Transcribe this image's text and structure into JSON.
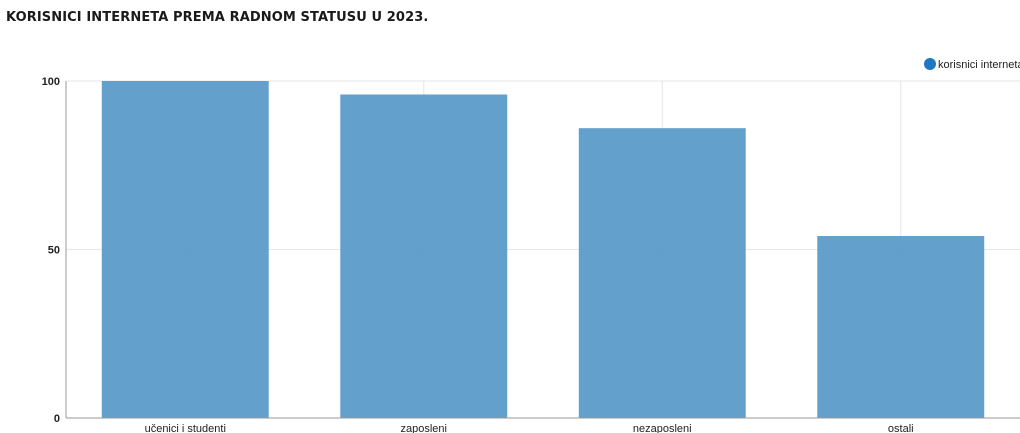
{
  "chart_data": {
    "type": "bar",
    "title": "KORISNICI INTERNETA PREMA RADNOM STATUSU U 2023.",
    "categories": [
      "učenici i studenti",
      "zaposleni",
      "nezaposleni",
      "ostali"
    ],
    "series": [
      {
        "name": "korisnici interneta",
        "values": [
          100,
          96,
          86,
          54
        ],
        "color": "#5b9bc8"
      }
    ],
    "y_ticks": [
      "0",
      "50",
      "100"
    ],
    "ylim": [
      0,
      100
    ],
    "grid": true,
    "legend_position": "top-right",
    "legend_marker_color": "#1f77c4"
  }
}
